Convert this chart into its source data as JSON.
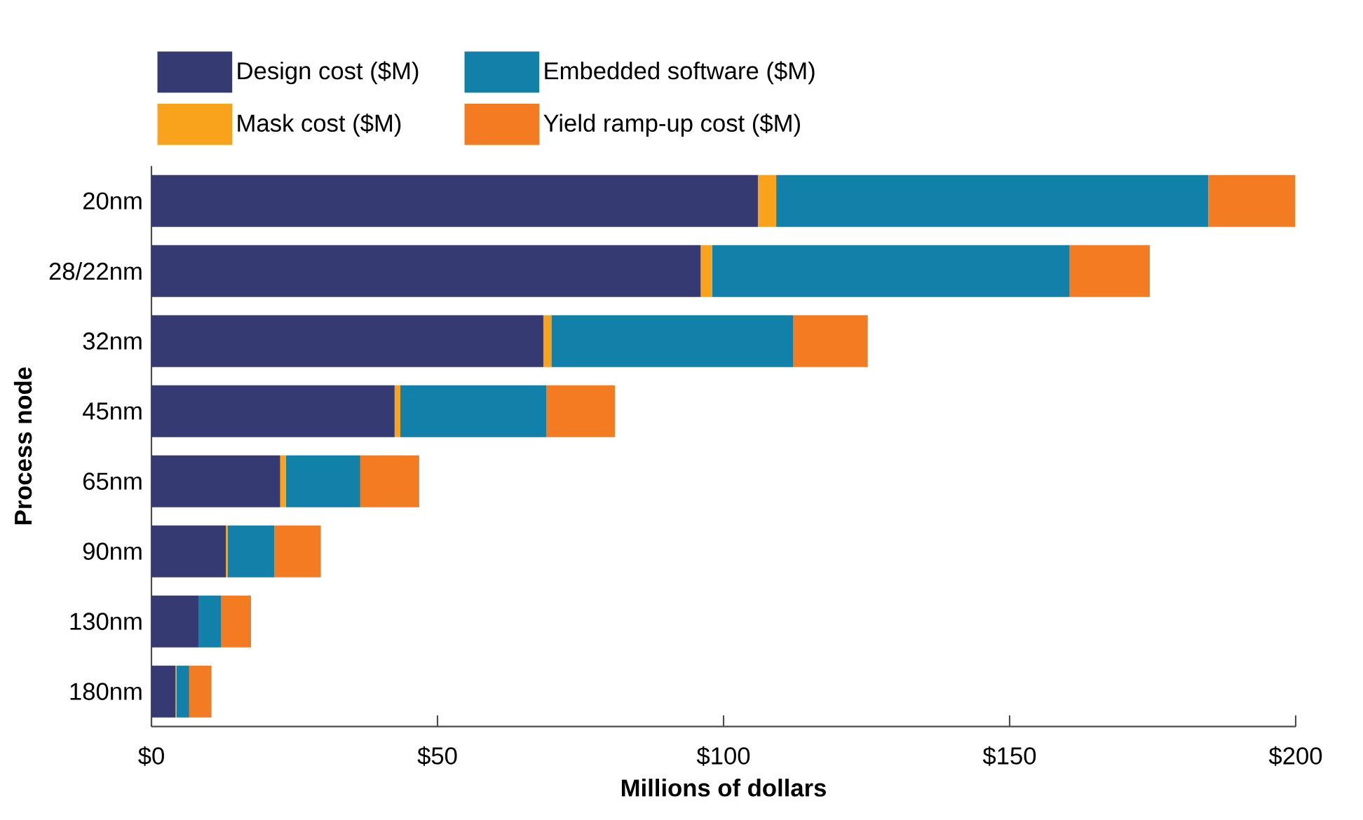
{
  "chart_data": {
    "type": "bar",
    "orientation": "horizontal",
    "stacked": true,
    "xlabel": "Millions of dollars",
    "ylabel": "Process node",
    "categories": [
      "20nm",
      "28/22nm",
      "32nm",
      "45nm",
      "65nm",
      "90nm",
      "130nm",
      "180nm"
    ],
    "series": [
      {
        "name": "Design cost ($M)",
        "color": "#363a72",
        "values": [
          106,
          96,
          68.5,
          42.5,
          22.5,
          13,
          8.3,
          4.2
        ]
      },
      {
        "name": "Mask cost ($M)",
        "color": "#f9a21c",
        "values": [
          3.2,
          2,
          1.4,
          1,
          1,
          0.3,
          0,
          0.2
        ]
      },
      {
        "name": "Embedded software ($M)",
        "color": "#1181a9",
        "values": [
          75.5,
          62.5,
          42.3,
          25.5,
          13,
          8.2,
          3.9,
          2.2
        ]
      },
      {
        "name": "Yield ramp-up cost ($M)",
        "color": "#f37c22",
        "values": [
          15.2,
          14,
          13,
          12,
          10.3,
          8.1,
          5.2,
          3.9
        ]
      }
    ],
    "xlim": [
      0,
      200
    ],
    "xticks": [
      {
        "value": 0,
        "label": "$0"
      },
      {
        "value": 50,
        "label": "$50"
      },
      {
        "value": 100,
        "label": "$100"
      },
      {
        "value": 150,
        "label": "$150"
      },
      {
        "value": 200,
        "label": "$200"
      }
    ],
    "legend": "top",
    "grid": false
  }
}
